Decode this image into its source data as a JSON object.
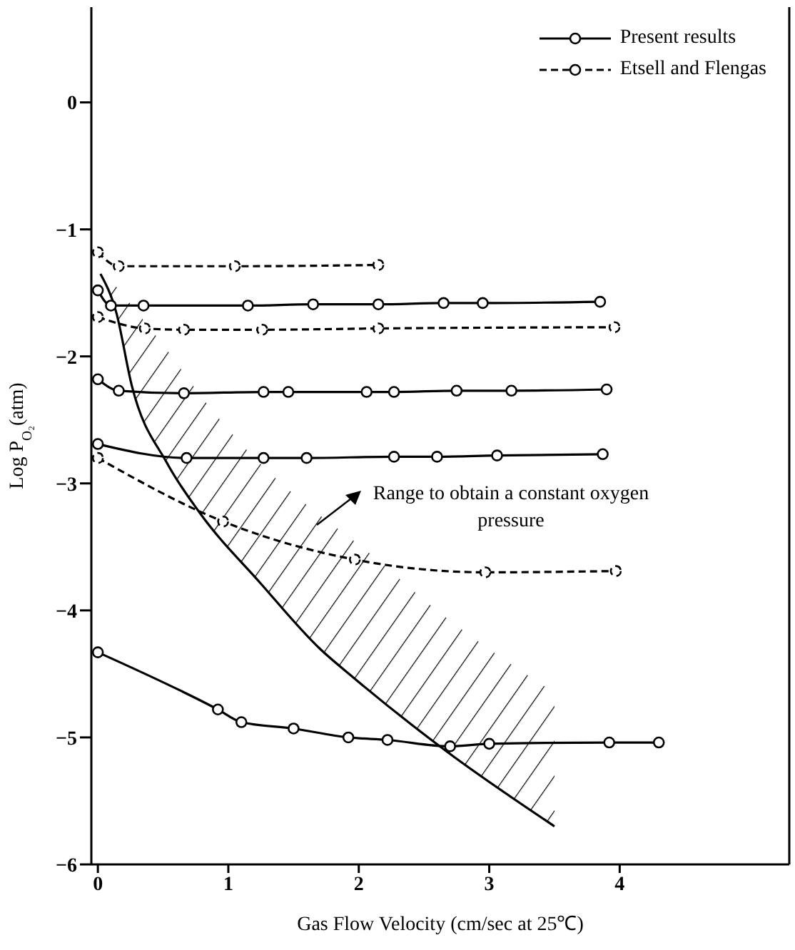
{
  "chart_data": {
    "type": "line",
    "xlabel": "Gas Flow Velocity (cm/sec at 25℃)",
    "ylabel": "Log P$_{O₂}$(atm)",
    "xlim": [
      -0.05,
      5.3
    ],
    "ylim": [
      -6,
      0.75
    ],
    "xticks": [
      0,
      1,
      2,
      3,
      4
    ],
    "yticks": [
      0,
      -1,
      -2,
      -3,
      -4,
      -5,
      -6
    ],
    "legend": "top right",
    "marker": "circle",
    "grid": false,
    "annotations": [
      "Range to obtain a constant oxygen pressure"
    ],
    "series": [
      {
        "name": "Present results",
        "color": "#000000",
        "line_style": "solid",
        "x": [
          0,
          0.1,
          0.35,
          1.15,
          1.65,
          2.15,
          2.65,
          2.95,
          3.85
        ],
        "values": [
          -1.48,
          -1.6,
          -1.6,
          -1.6,
          -1.59,
          -1.59,
          -1.58,
          -1.58,
          -1.57
        ]
      },
      {
        "name": "Etsell and Flengas",
        "color": "#000000",
        "line_style": "dashed",
        "x": [
          0,
          0.16,
          1.05,
          2.15
        ],
        "values": [
          -1.18,
          -1.29,
          -1.29,
          -1.28
        ]
      },
      {
        "color": "#000000",
        "line_style": "dashed",
        "x": [
          0,
          0.36,
          0.66,
          1.26,
          2.15,
          3.96
        ],
        "values": [
          -1.69,
          -1.78,
          -1.79,
          -1.79,
          -1.78,
          -1.77
        ]
      },
      {
        "color": "#000000",
        "line_style": "solid",
        "x": [
          0,
          0.16,
          0.66,
          1.27,
          1.46,
          2.06,
          2.27,
          2.75,
          3.17,
          3.9
        ],
        "values": [
          -2.18,
          -2.27,
          -2.29,
          -2.28,
          -2.28,
          -2.28,
          -2.28,
          -2.27,
          -2.27,
          -2.26
        ]
      },
      {
        "color": "#000000",
        "line_style": "solid",
        "x": [
          0,
          0.68,
          1.27,
          1.6,
          2.27,
          2.6,
          3.06,
          3.87
        ],
        "values": [
          -2.69,
          -2.8,
          -2.8,
          -2.8,
          -2.79,
          -2.79,
          -2.78,
          -2.77
        ]
      },
      {
        "color": "#000000",
        "line_style": "dashed",
        "x": [
          0,
          0.96,
          1.97,
          2.97,
          3.97
        ],
        "values": [
          -2.8,
          -3.3,
          -3.6,
          -3.7,
          -3.69
        ]
      },
      {
        "color": "#000000",
        "line_style": "solid",
        "x": [
          0,
          0.92,
          1.1,
          1.5,
          1.92,
          2.22,
          2.7,
          3.0,
          3.92,
          4.3
        ],
        "values": [
          -4.33,
          -4.78,
          -4.88,
          -4.93,
          -5.0,
          -5.02,
          -5.07,
          -5.05,
          -5.04,
          -5.04
        ]
      },
      {
        "type": "line",
        "color": "#000000",
        "line_style": "solid",
        "marker": "none",
        "x": [
          0.02,
          0.14,
          0.26,
          0.53,
          0.78,
          1.25,
          1.7,
          1.96,
          2.66,
          3.5
        ],
        "values": [
          -1.35,
          -1.65,
          -2.23,
          -2.84,
          -3.23,
          -3.79,
          -4.3,
          -4.53,
          -5.1,
          -5.7
        ],
        "lower": [
          -1.35,
          -1.65,
          -2.23,
          -2.84,
          -3.23,
          -3.79,
          -4.3,
          -4.53,
          -5.1,
          -5.7
        ],
        "upper": [
          -1.35,
          -1.45,
          -1.6,
          -1.95,
          -2.3,
          -2.85,
          -3.25,
          -3.45,
          -4.05,
          -4.65
        ]
      }
    ]
  }
}
